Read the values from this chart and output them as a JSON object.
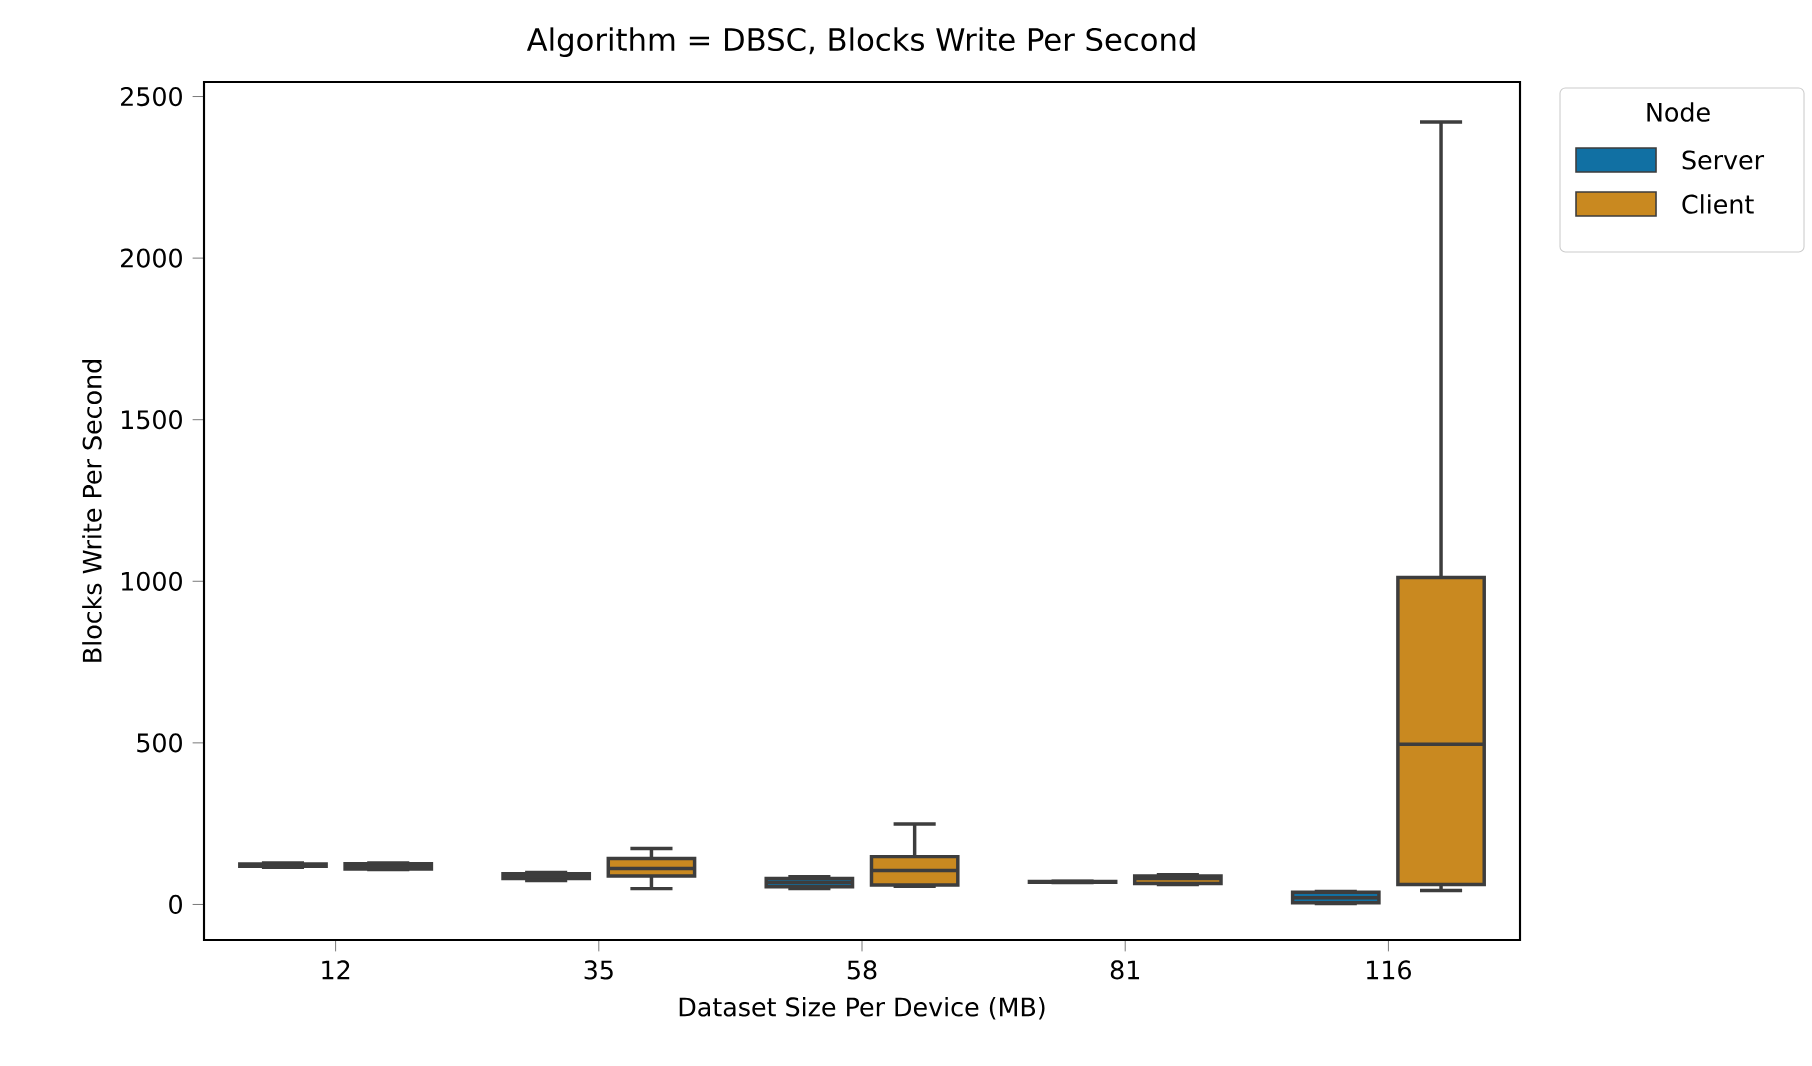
{
  "chart_data": {
    "type": "box",
    "title": "Algorithm = DBSC, Blocks Write Per Second",
    "xlabel": "Dataset Size Per Device (MB)",
    "ylabel": "Blocks Write Per Second",
    "legend_title": "Node",
    "categories": [
      "12",
      "35",
      "58",
      "81",
      "116"
    ],
    "series": [
      {
        "name": "Server",
        "color": "#1170a3",
        "boxes": [
          {
            "low": 115,
            "q1": 118,
            "median": 121,
            "q3": 125,
            "high": 128
          },
          {
            "low": 74,
            "q1": 80,
            "median": 86,
            "q3": 95,
            "high": 99
          },
          {
            "low": 49,
            "q1": 55,
            "median": 68,
            "q3": 80,
            "high": 86
          },
          {
            "low": 68,
            "q1": 69,
            "median": 70,
            "q3": 71,
            "high": 72
          },
          {
            "low": 3,
            "q1": 5,
            "median": 21,
            "q3": 38,
            "high": 40
          }
        ]
      },
      {
        "name": "Client",
        "color": "#c98920",
        "boxes": [
          {
            "low": 108,
            "q1": 110,
            "median": 118,
            "q3": 126,
            "high": 128
          },
          {
            "low": 49,
            "q1": 88,
            "median": 111,
            "q3": 142,
            "high": 173
          },
          {
            "low": 56,
            "q1": 60,
            "median": 105,
            "q3": 148,
            "high": 249
          },
          {
            "low": 62,
            "q1": 65,
            "median": 80,
            "q3": 88,
            "high": 92
          },
          {
            "low": 43,
            "q1": 62,
            "median": 496,
            "q3": 1012,
            "high": 2421
          }
        ]
      }
    ],
    "ylim": [
      -110,
      2545
    ],
    "yticks": [
      0,
      500,
      1000,
      1500,
      2000,
      2500
    ],
    "grid": false,
    "legend": "top right"
  }
}
